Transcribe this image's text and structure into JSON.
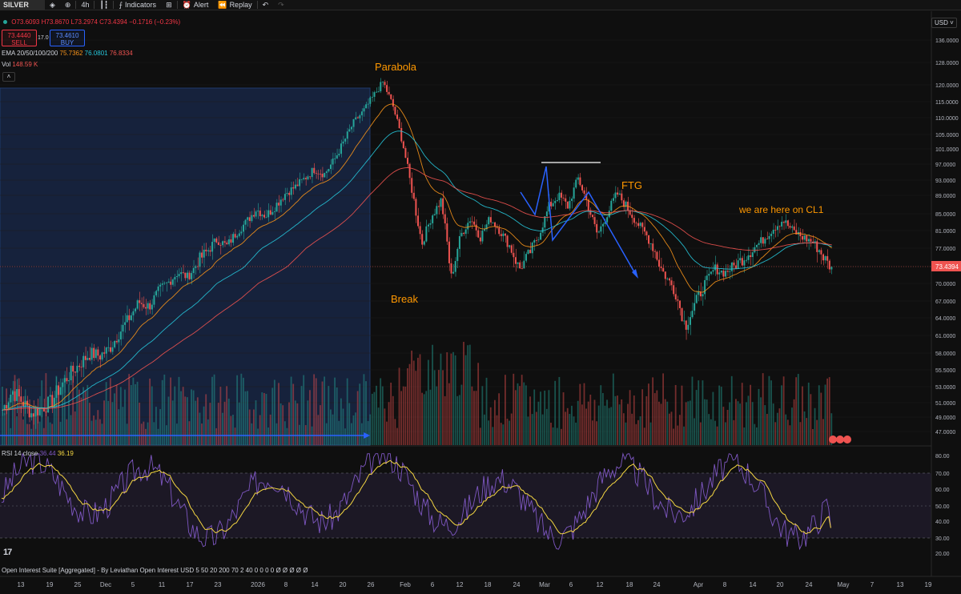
{
  "toolbar": {
    "symbol": "SILVER",
    "interval": "4h",
    "indicators_label": "Indicators",
    "alert_label": "Alert",
    "replay_label": "Replay"
  },
  "legend": {
    "ohlc_o": "O73.6093",
    "ohlc_h": "H73.8670",
    "ohlc_l": "L73.2974",
    "ohlc_c": "C73.4394",
    "ohlc_change": "−0.1716 (−0.23%)",
    "sell_price": "73.4440",
    "sell_label": "SELL",
    "spread": "17.0",
    "buy_price": "73.4610",
    "buy_label": "BUY",
    "ema_label": "EMA 20/50/100/200",
    "ema_values": [
      "75.7362",
      "76.0801",
      "76.8334"
    ],
    "vol_label": "Vol",
    "vol_value": "148.59 K",
    "rsi_label": "RSI 14 close",
    "rsi_values": [
      "36.44",
      "36.19"
    ],
    "bottom_text": "Open Interest Suite [Aggregated] - By Leviathan Open Interest USD 5 50 20 200 70 2 40 0 0 0 0 Ø Ø Ø Ø Ø",
    "currency": "USD"
  },
  "colors": {
    "bg": "#0f0f0f",
    "up": "#26a69a",
    "down": "#ef5350",
    "ema20": "#f7931a",
    "ema50": "#26c6da",
    "ema100": "#ef5350",
    "rsi": "#7e57c2",
    "rsi_ma": "#f5d742",
    "highlight": "#1a2a4a",
    "annotation": "#ff9800",
    "arrow": "#2962ff"
  },
  "chart_data": [
    {
      "type": "candlestick",
      "title": "SILVER",
      "interval": "4h",
      "ylim": [
        45.0,
        138.0
      ],
      "y_ticks": [
        "136.0000",
        "128.0000",
        "120.0000",
        "115.0000",
        "110.0000",
        "105.0000",
        "101.0000",
        "97.0000",
        "93.0000",
        "89.0000",
        "85.0000",
        "81.0000",
        "77.0000",
        "74.0000",
        "70.0000",
        "67.0000",
        "64.0000",
        "61.0000",
        "58.0000",
        "55.5000",
        "53.0000",
        "51.0000",
        "49.0000",
        "47.0000"
      ],
      "last_price": "73.4394",
      "x_ticks": [
        "13",
        "19",
        "25",
        "Dec",
        "5",
        "11",
        "17",
        "23",
        "2026",
        "8",
        "14",
        "20",
        "26",
        "Feb",
        "6",
        "12",
        "18",
        "24",
        "Mar",
        "6",
        "12",
        "18",
        "24",
        "Apr",
        "8",
        "14",
        "20",
        "24",
        "May",
        "7",
        "13",
        "19"
      ],
      "close_series": [
        50.0,
        52.5,
        51.2,
        49.5,
        50.3,
        51.0,
        53.2,
        55.0,
        56.5,
        58.0,
        57.6,
        58.8,
        61.5,
        64.0,
        66.8,
        66.0,
        68.5,
        70.2,
        72.6,
        71.5,
        74.8,
        76.5,
        79.0,
        77.5,
        80.6,
        83.0,
        86.0,
        84.5,
        86.8,
        89.5,
        91.2,
        93.5,
        95.8,
        94.5,
        98.0,
        103.0,
        108.5,
        112.0,
        116.5,
        121.0,
        114.0,
        103.0,
        90.0,
        78.0,
        84.5,
        88.0,
        71.5,
        80.0,
        84.0,
        79.5,
        84.0,
        81.0,
        77.5,
        73.5,
        76.0,
        80.0,
        86.5,
        89.0,
        86.5,
        93.5,
        87.0,
        80.0,
        85.0,
        89.5,
        86.5,
        83.0,
        80.0,
        76.0,
        71.5,
        68.5,
        62.5,
        66.5,
        70.0,
        73.5,
        72.5,
        74.0,
        75.5,
        77.0,
        79.0,
        81.5,
        83.5,
        81.0,
        79.5,
        78.5,
        76.0,
        73.4394
      ],
      "annotations": [
        "Parabola",
        "Break",
        "FTG",
        "we are here on CL1"
      ]
    },
    {
      "type": "bar",
      "title": "Vol",
      "value": "148.59 K"
    },
    {
      "type": "line",
      "title": "RSI 14 close",
      "ylim": [
        15,
        85
      ],
      "y_ticks": [
        "80.00",
        "70.00",
        "60.00",
        "50.00",
        "40.00",
        "30.00",
        "20.00"
      ],
      "bands": [
        30,
        70
      ],
      "values": [
        36.44,
        36.19
      ]
    }
  ]
}
